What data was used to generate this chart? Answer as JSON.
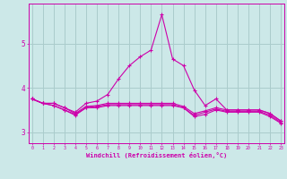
{
  "x": [
    0,
    1,
    2,
    3,
    4,
    5,
    6,
    7,
    8,
    9,
    10,
    11,
    12,
    13,
    14,
    15,
    16,
    17,
    18,
    19,
    20,
    21,
    22,
    23
  ],
  "line1": [
    3.75,
    3.65,
    3.6,
    3.5,
    3.4,
    3.55,
    3.55,
    3.6,
    3.6,
    3.6,
    3.6,
    3.6,
    3.6,
    3.6,
    3.55,
    3.35,
    3.4,
    3.5,
    3.45,
    3.45,
    3.45,
    3.45,
    3.35,
    3.2
  ],
  "line2": [
    3.75,
    3.65,
    3.6,
    3.5,
    3.38,
    3.55,
    3.58,
    3.62,
    3.62,
    3.62,
    3.62,
    3.62,
    3.62,
    3.62,
    3.55,
    3.38,
    3.45,
    3.52,
    3.47,
    3.47,
    3.47,
    3.47,
    3.38,
    3.22
  ],
  "line3": [
    3.75,
    3.65,
    3.65,
    3.55,
    3.42,
    3.58,
    3.6,
    3.65,
    3.65,
    3.65,
    3.65,
    3.65,
    3.65,
    3.65,
    3.58,
    3.42,
    3.48,
    3.55,
    3.5,
    3.5,
    3.5,
    3.5,
    3.42,
    3.25
  ],
  "line4": [
    3.75,
    3.65,
    3.65,
    3.55,
    3.45,
    3.65,
    3.7,
    3.85,
    4.2,
    4.5,
    4.7,
    4.85,
    5.65,
    4.65,
    4.5,
    3.95,
    3.6,
    3.75,
    3.5,
    3.5,
    3.5,
    3.5,
    3.42,
    3.25
  ],
  "bg_color": "#cce8e8",
  "grid_color": "#aacccc",
  "line_color": "#cc00aa",
  "xlabel": "Windchill (Refroidissement éolien,°C)",
  "yticks": [
    3,
    4,
    5
  ],
  "xticks": [
    0,
    1,
    2,
    3,
    4,
    5,
    6,
    7,
    8,
    9,
    10,
    11,
    12,
    13,
    14,
    15,
    16,
    17,
    18,
    19,
    20,
    21,
    22,
    23
  ],
  "ylim": [
    2.75,
    5.9
  ],
  "xlim": [
    -0.3,
    23.3
  ]
}
